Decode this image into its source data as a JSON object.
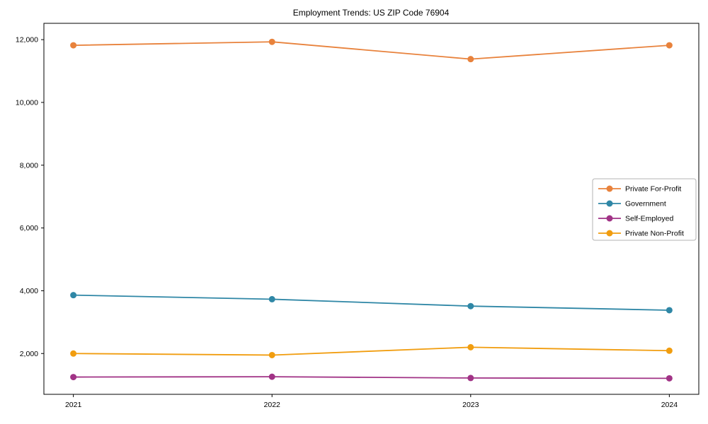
{
  "page": {
    "background": "#ffffff"
  },
  "chart_data": {
    "type": "line",
    "title": "Employment Trends: US ZIP Code 76904",
    "xlabel": "",
    "ylabel": "",
    "x": [
      2021,
      2022,
      2023,
      2024
    ],
    "xticklabels": [
      "2021",
      "2022",
      "2023",
      "2024"
    ],
    "yticks": [
      2000,
      4000,
      6000,
      8000,
      10000,
      12000
    ],
    "yticklabels": [
      "2,000",
      "4,000",
      "6,000",
      "8,000",
      "10,000",
      "12,000"
    ],
    "ylim": [
      700,
      12520
    ],
    "grid": false,
    "legend": {
      "position": "center-right",
      "background": "#ffffff",
      "border_color": "#b3b3b3"
    },
    "series": [
      {
        "name": "Private For-Profit",
        "color": "#e8823c",
        "marker": "circle",
        "values": [
          11820,
          11930,
          11380,
          11820
        ]
      },
      {
        "name": "Government",
        "color": "#2f87a6",
        "marker": "circle",
        "values": [
          3860,
          3730,
          3510,
          3380
        ]
      },
      {
        "name": "Self-Employed",
        "color": "#a13386",
        "marker": "circle",
        "values": [
          1250,
          1260,
          1220,
          1210
        ]
      },
      {
        "name": "Private Non-Profit",
        "color": "#f19d0f",
        "marker": "circle",
        "values": [
          2000,
          1950,
          2200,
          2090
        ]
      }
    ],
    "axis_color": "#000000"
  }
}
